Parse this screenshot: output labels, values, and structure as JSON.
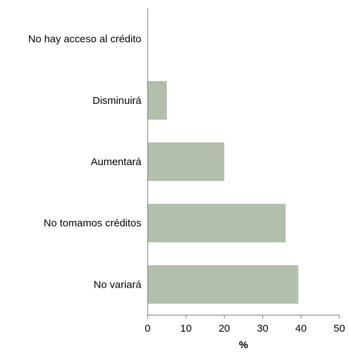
{
  "chart_data": {
    "type": "bar",
    "orientation": "horizontal",
    "categories": [
      "No hay acceso al crédito",
      "Disminuirá",
      "Aumentará",
      "No tomamos créditos",
      "No variará"
    ],
    "values": [
      0,
      5,
      20,
      36,
      39.3
    ],
    "xlabel": "%",
    "xlim": [
      0,
      50
    ],
    "xticks": [
      0,
      10,
      20,
      30,
      40,
      50
    ],
    "grid": false,
    "legend": "none",
    "bar_color": "#b1bfab",
    "axis_color": "#8a8a8a"
  }
}
